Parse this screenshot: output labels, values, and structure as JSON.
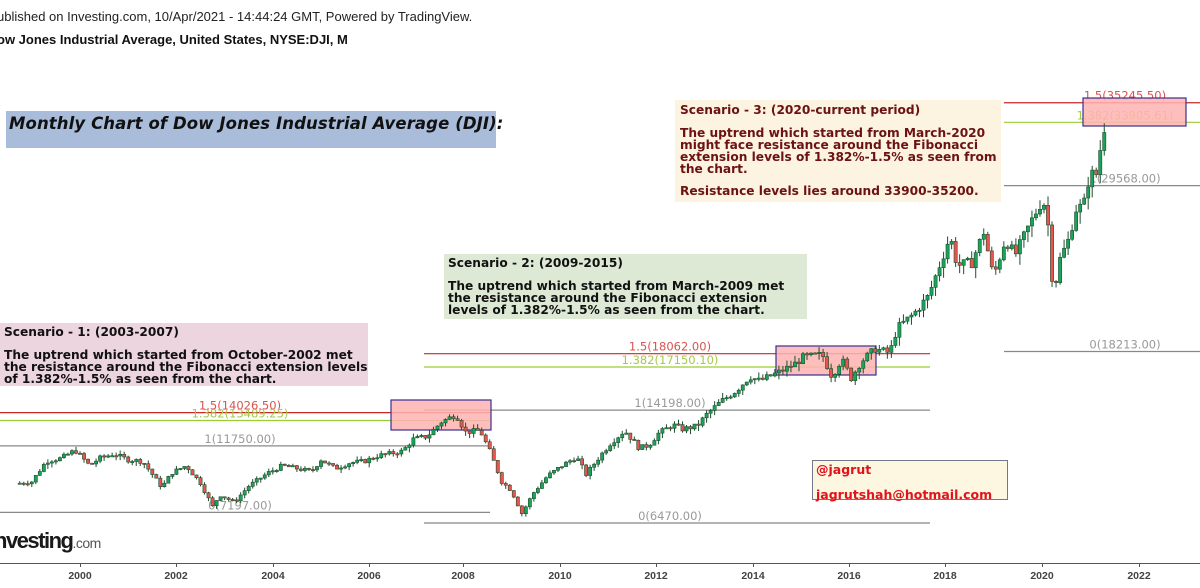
{
  "header": {
    "published": "ublished on Investing.com, 10/Apr/2021 - 14:44:24 GMT, Powered by TradingView.",
    "symbol_line": "ow Jones Industrial Average, United States, NYSE:DJI, M"
  },
  "title": "Monthly Chart of Dow Jones Industrial Average (DJI):",
  "notes": {
    "scenario1": {
      "head": "Scenario - 1: (2003-2007)",
      "body": "The uptrend which started from October-2002 met the resistance around the Fibonacci extension levels of 1.382%-1.5% as seen from the chart."
    },
    "scenario2": {
      "head": "Scenario - 2: (2009-2015)",
      "body": "The uptrend which started from March-2009 met the resistance around the Fibonacci extension levels of 1.382%-1.5% as seen from the chart."
    },
    "scenario3": {
      "head": "Scenario - 3: (2020-current period)",
      "body": "The uptrend which started from March-2020 might face resistance around the Fibonacci extension levels of 1.382%-1.5% as seen from the chart.",
      "extra": "Resistance levels lies around 33900-35200."
    }
  },
  "credit": {
    "handle": "@jagrut",
    "email": "jagrutshah@hotmail.com"
  },
  "logo": {
    "main": "nvesting",
    "suffix": ".com"
  },
  "colors": {
    "up_candle": "#1aa35a",
    "down_candle": "#e8554f",
    "candle_outline": "#1f4d2e",
    "fib_1_5": "#c62828",
    "fib_1_382": "#9acd32",
    "fib_neutral": "#888888",
    "zone_fill": "#ffb3b3",
    "zone_border": "#3a2f8f"
  },
  "chart_data": {
    "type": "candlestick",
    "title": "Dow Jones Industrial Average, United States, NYSE:DJI, M",
    "xlabel": "",
    "ylabel": "",
    "x_ticks": [
      "2000",
      "2002",
      "2004",
      "2006",
      "2008",
      "2010",
      "2012",
      "2014",
      "2016",
      "2018",
      "2020",
      "2022"
    ],
    "grid": false,
    "fibonacci_sets": [
      {
        "name": "Scenario 1 (2003-2007)",
        "levels": [
          {
            "ratio": "0",
            "value": 7197.0,
            "label": "0(7197.00)"
          },
          {
            "ratio": "1",
            "value": 11750.0,
            "label": "1(11750.00)"
          },
          {
            "ratio": "1.382",
            "value": 13489.25,
            "label": "1.382(13489.25)"
          },
          {
            "ratio": "1.5",
            "value": 14026.5,
            "label": "1.5(14026.50)"
          }
        ]
      },
      {
        "name": "Scenario 2 (2009-2015)",
        "levels": [
          {
            "ratio": "0",
            "value": 6470.0,
            "label": "0(6470.00)"
          },
          {
            "ratio": "1",
            "value": 14198.0,
            "label": "1(14198.00)"
          },
          {
            "ratio": "1.382",
            "value": 17150.1,
            "label": "1.382(17150.10)"
          },
          {
            "ratio": "1.5",
            "value": 18062.0,
            "label": "1.5(18062.00)"
          }
        ]
      },
      {
        "name": "Scenario 3 (2020-current)",
        "levels": [
          {
            "ratio": "0",
            "value": 18213.0,
            "label": "0(18213.00)"
          },
          {
            "ratio": "1",
            "value": 29568.0,
            "label": "1(29568.00)"
          },
          {
            "ratio": "1.382",
            "value": 33905.61,
            "label": "1.382(33905.61)"
          },
          {
            "ratio": "1.5",
            "value": 35245.5,
            "label": "1.5(35245.50)"
          }
        ]
      }
    ],
    "approx_yearly_close": {
      "x": [
        1999,
        2000,
        2001,
        2002,
        2003,
        2004,
        2005,
        2006,
        2007,
        2008,
        2009,
        2010,
        2011,
        2012,
        2013,
        2014,
        2015,
        2016,
        2017,
        2018,
        2019,
        2020,
        2021.25
      ],
      "values": [
        11500,
        10800,
        10000,
        8300,
        10450,
        10780,
        10720,
        12460,
        13260,
        8780,
        10430,
        11580,
        12220,
        13100,
        16580,
        17820,
        17430,
        19760,
        24720,
        23330,
        28540,
        30600,
        33800
      ]
    },
    "resistance_zones": [
      {
        "from": "2006-09",
        "to": "2008-05",
        "low": 13489.25,
        "high": 14300
      },
      {
        "from": "2014-06",
        "to": "2016-08",
        "low": 17150.1,
        "high": 18300
      },
      {
        "from": "2021-01",
        "to": "2022-08",
        "low": 33905.61,
        "high": 35400
      }
    ]
  },
  "axis": {
    "ticks": [
      {
        "label": "2000",
        "x": 80
      },
      {
        "label": "2002",
        "x": 176
      },
      {
        "label": "2004",
        "x": 273
      },
      {
        "label": "2006",
        "x": 369
      },
      {
        "label": "2008",
        "x": 463
      },
      {
        "label": "2010",
        "x": 560
      },
      {
        "label": "2012",
        "x": 656
      },
      {
        "label": "2014",
        "x": 753
      },
      {
        "label": "2016",
        "x": 849
      },
      {
        "label": "2018",
        "x": 945
      },
      {
        "label": "2020",
        "x": 1042
      },
      {
        "label": "2022",
        "x": 1139
      }
    ]
  }
}
